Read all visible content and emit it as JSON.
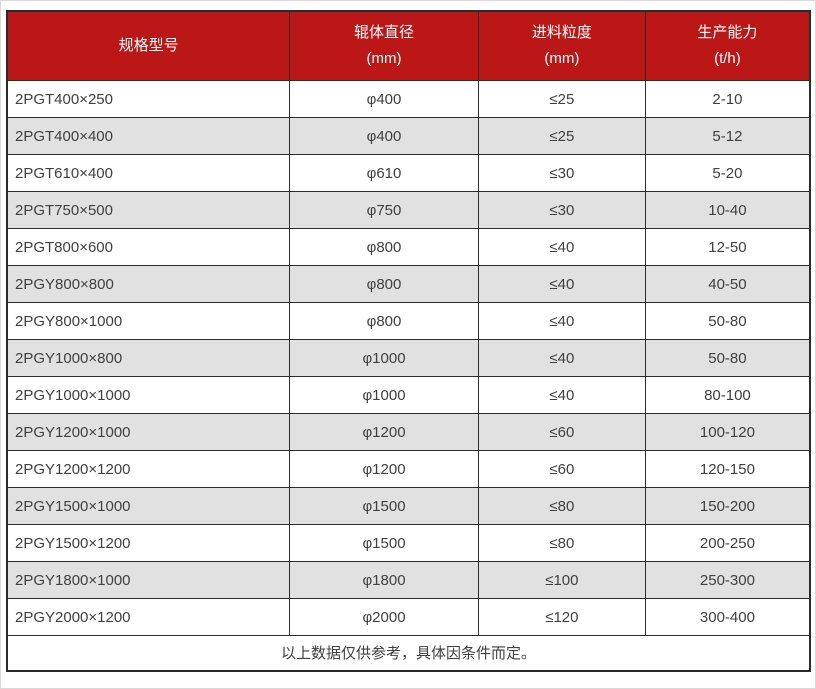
{
  "table": {
    "columns": [
      {
        "label": "规格型号",
        "unit": ""
      },
      {
        "label": "辊体直径",
        "unit": "(mm)"
      },
      {
        "label": "进料粒度",
        "unit": "(mm)"
      },
      {
        "label": "生产能力",
        "unit": "(t/h)"
      }
    ],
    "rows": [
      {
        "model": "2PGT400×250",
        "diameter": "φ400",
        "feed": "≤25",
        "capacity": "2-10"
      },
      {
        "model": "2PGT400×400",
        "diameter": "φ400",
        "feed": "≤25",
        "capacity": "5-12"
      },
      {
        "model": "2PGT610×400",
        "diameter": "φ610",
        "feed": "≤30",
        "capacity": "5-20"
      },
      {
        "model": "2PGT750×500",
        "diameter": "φ750",
        "feed": "≤30",
        "capacity": "10-40"
      },
      {
        "model": "2PGT800×600",
        "diameter": "φ800",
        "feed": "≤40",
        "capacity": "12-50"
      },
      {
        "model": "2PGY800×800",
        "diameter": "φ800",
        "feed": "≤40",
        "capacity": "40-50"
      },
      {
        "model": "2PGY800×1000",
        "diameter": "φ800",
        "feed": "≤40",
        "capacity": "50-80"
      },
      {
        "model": "2PGY1000×800",
        "diameter": "φ1000",
        "feed": "≤40",
        "capacity": "50-80"
      },
      {
        "model": "2PGY1000×1000",
        "diameter": "φ1000",
        "feed": "≤40",
        "capacity": "80-100"
      },
      {
        "model": "2PGY1200×1000",
        "diameter": "φ1200",
        "feed": "≤60",
        "capacity": "100-120"
      },
      {
        "model": "2PGY1200×1200",
        "diameter": "φ1200",
        "feed": "≤60",
        "capacity": "120-150"
      },
      {
        "model": "2PGY1500×1000",
        "diameter": "φ1500",
        "feed": "≤80",
        "capacity": "150-200"
      },
      {
        "model": "2PGY1500×1200",
        "diameter": "φ1500",
        "feed": "≤80",
        "capacity": "200-250"
      },
      {
        "model": "2PGY1800×1000",
        "diameter": "φ1800",
        "feed": "≤100",
        "capacity": "250-300"
      },
      {
        "model": "2PGY2000×1200",
        "diameter": "φ2000",
        "feed": "≤120",
        "capacity": "300-400"
      }
    ],
    "footnote": "以上数据仅供参考，具体因条件而定。"
  },
  "colors": {
    "header_bg": "#BB1717",
    "header_text": "#FFFFFF",
    "row_alt_bg": "#E1E1E1",
    "border": "#2B2B2B",
    "body_text": "#404040"
  }
}
